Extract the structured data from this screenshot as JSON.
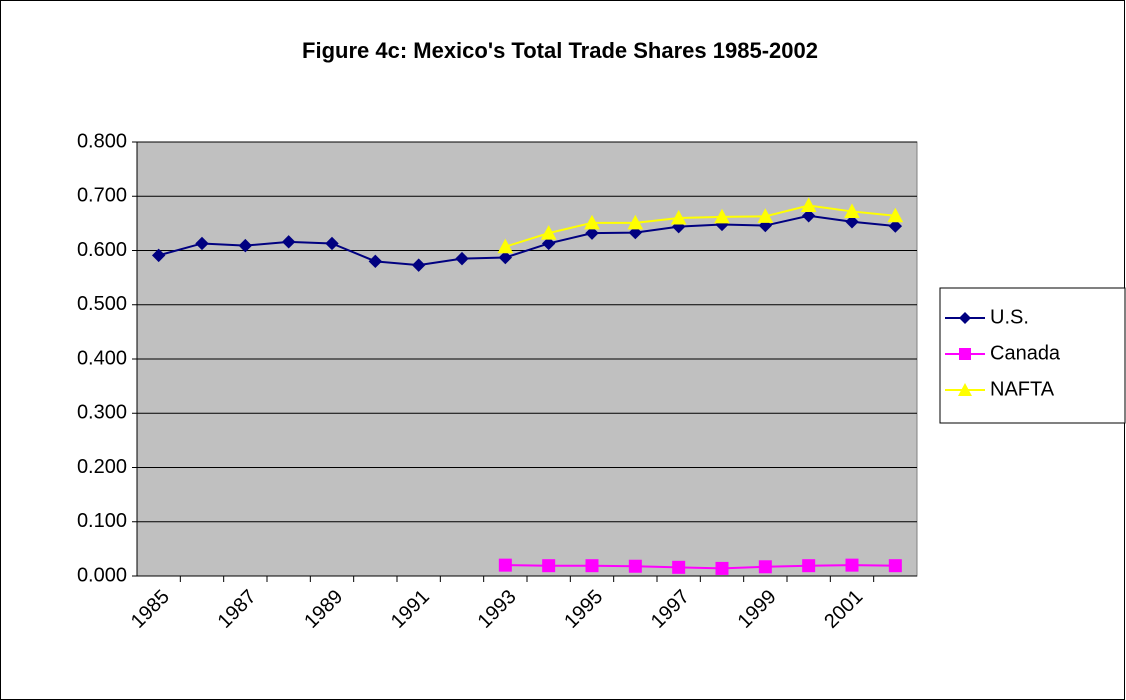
{
  "chart_data": {
    "type": "line",
    "title": "Figure 4c: Mexico's Total Trade Shares 1985-2002",
    "categories": [
      "1985",
      null,
      "1987",
      null,
      "1989",
      null,
      "1991",
      null,
      "1993",
      null,
      "1995",
      null,
      "1997",
      null,
      "1999",
      null,
      "2001",
      null
    ],
    "series": [
      {
        "name": "U.S.",
        "color": "#000080",
        "marker": "diamond",
        "values": [
          0.591,
          0.613,
          0.609,
          0.616,
          0.613,
          0.58,
          0.573,
          0.585,
          0.587,
          0.613,
          0.632,
          0.633,
          0.644,
          0.648,
          0.646,
          0.664,
          0.653,
          0.645
        ]
      },
      {
        "name": "Canada",
        "color": "#ff00ff",
        "marker": "square",
        "values": [
          null,
          null,
          null,
          null,
          null,
          null,
          null,
          null,
          0.02,
          0.019,
          0.019,
          0.018,
          0.016,
          0.014,
          0.017,
          0.019,
          0.02,
          0.019
        ]
      },
      {
        "name": "NAFTA",
        "color": "#ffff00",
        "marker": "triangle",
        "values": [
          null,
          null,
          null,
          null,
          null,
          null,
          null,
          null,
          0.607,
          0.632,
          0.651,
          0.651,
          0.66,
          0.662,
          0.663,
          0.683,
          0.672,
          0.664
        ]
      }
    ],
    "ylim": [
      0,
      0.8
    ],
    "yticks": [
      {
        "value": 0,
        "label": "0.000"
      },
      {
        "value": 0.1,
        "label": "0.100"
      },
      {
        "value": 0.2,
        "label": "0.200"
      },
      {
        "value": 0.3,
        "label": "0.300"
      },
      {
        "value": 0.4,
        "label": "0.400"
      },
      {
        "value": 0.5,
        "label": "0.500"
      },
      {
        "value": 0.6,
        "label": "0.600"
      },
      {
        "value": 0.7,
        "label": "0.700"
      },
      {
        "value": 0.8,
        "label": "0.800"
      }
    ],
    "grid": true,
    "plot_background": "#c0c0c0",
    "legend": "right"
  }
}
